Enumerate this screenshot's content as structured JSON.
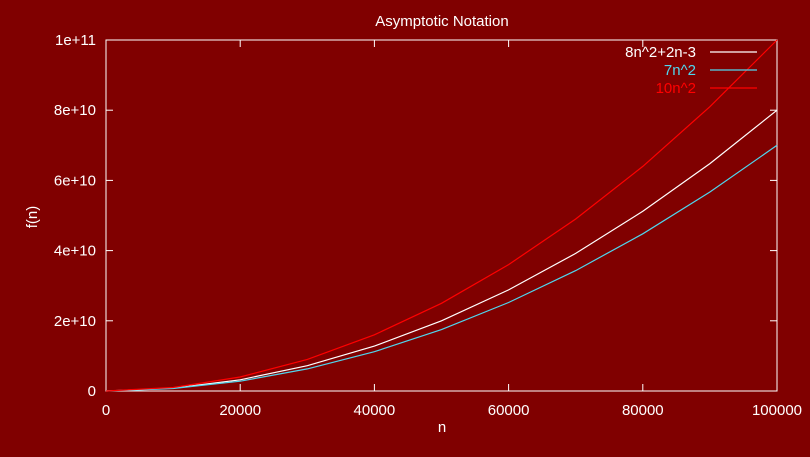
{
  "chart_data": {
    "type": "line",
    "title": "Asymptotic Notation",
    "xlabel": "n",
    "ylabel": "f(n)",
    "xlim": [
      0,
      100000
    ],
    "ylim": [
      0,
      100000000000
    ],
    "x_ticks": [
      0,
      20000,
      40000,
      60000,
      80000,
      100000
    ],
    "x_tick_labels": [
      "0",
      "20000",
      "40000",
      "60000",
      "80000",
      "100000"
    ],
    "y_ticks": [
      0,
      20000000000,
      40000000000,
      60000000000,
      80000000000,
      100000000000
    ],
    "y_tick_labels": [
      "0",
      "2e+10",
      "4e+10",
      "6e+10",
      "8e+10",
      "1e+11"
    ],
    "grid": false,
    "legend_position": "top-right",
    "x": [
      0,
      10000,
      20000,
      30000,
      40000,
      50000,
      60000,
      70000,
      80000,
      90000,
      100000
    ],
    "series": [
      {
        "name": "8n^2+2n-3",
        "color": "#ffffff",
        "values": [
          0,
          800000000,
          3200000000,
          7200000000,
          12800000000,
          20000000000,
          28800000000,
          39200000000,
          51200000000,
          64800000000,
          80000000000
        ]
      },
      {
        "name": "7n^2",
        "color": "#4fd6ee",
        "values": [
          0,
          700000000,
          2800000000,
          6300000000,
          11200000000,
          17500000000,
          25200000000,
          34300000000,
          44800000000,
          56700000000,
          70000000000
        ]
      },
      {
        "name": "10n^2",
        "color": "#ff0000",
        "values": [
          0,
          1000000000,
          4000000000,
          9000000000,
          16000000000,
          25000000000,
          36000000000,
          49000000000,
          64000000000,
          81000000000,
          100000000000
        ]
      }
    ]
  }
}
